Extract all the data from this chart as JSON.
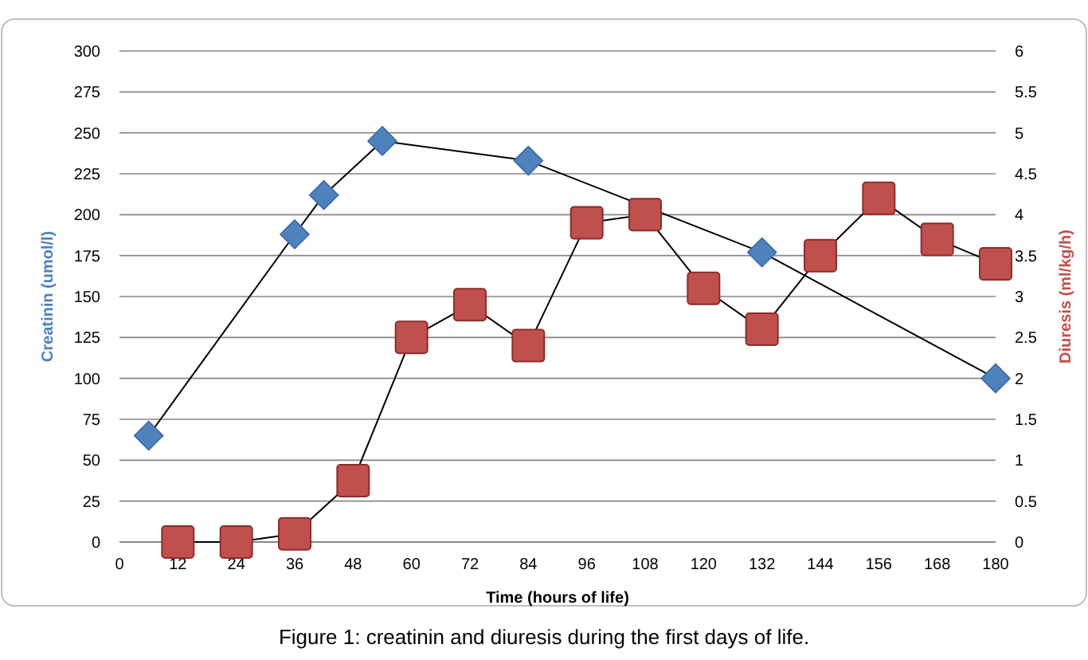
{
  "chart_data": {
    "type": "line",
    "xlabel": "Time (hours of life)",
    "ylabel": "Creatinin (umol/l)",
    "y2label": "Diuresis (ml/kg/h)",
    "xlim": [
      0,
      180
    ],
    "xticks": [
      0,
      12,
      24,
      36,
      48,
      60,
      72,
      84,
      96,
      108,
      120,
      132,
      144,
      156,
      168,
      180
    ],
    "ylim": [
      0,
      300
    ],
    "yticks": [
      0,
      25,
      50,
      75,
      100,
      125,
      150,
      175,
      200,
      225,
      250,
      275,
      300
    ],
    "y2lim": [
      0,
      6
    ],
    "y2ticks": [
      0,
      0.5,
      1,
      1.5,
      2,
      2.5,
      3,
      3.5,
      4,
      4.5,
      5,
      5.5,
      6
    ],
    "grid": "y",
    "series": [
      {
        "marker": "diamond",
        "color": "#4f81bd",
        "x": [
          6,
          36,
          42,
          54,
          84,
          132,
          180
        ],
        "values": [
          65,
          188,
          212,
          245,
          233,
          177,
          100
        ]
      },
      {
        "marker": "square",
        "axis": "y2",
        "color": "#c0504d",
        "x": [
          12,
          24,
          36,
          48,
          60,
          72,
          84,
          96,
          108,
          120,
          132,
          144,
          156,
          168,
          180
        ],
        "values": [
          0,
          0,
          0.1,
          0.75,
          2.5,
          2.9,
          2.4,
          3.9,
          4,
          3.1,
          2.6,
          3.5,
          4.2,
          3.7,
          3.4
        ]
      }
    ],
    "annotations": [
      "Figure 1: creatinin and diuresis during the first days of life."
    ]
  }
}
